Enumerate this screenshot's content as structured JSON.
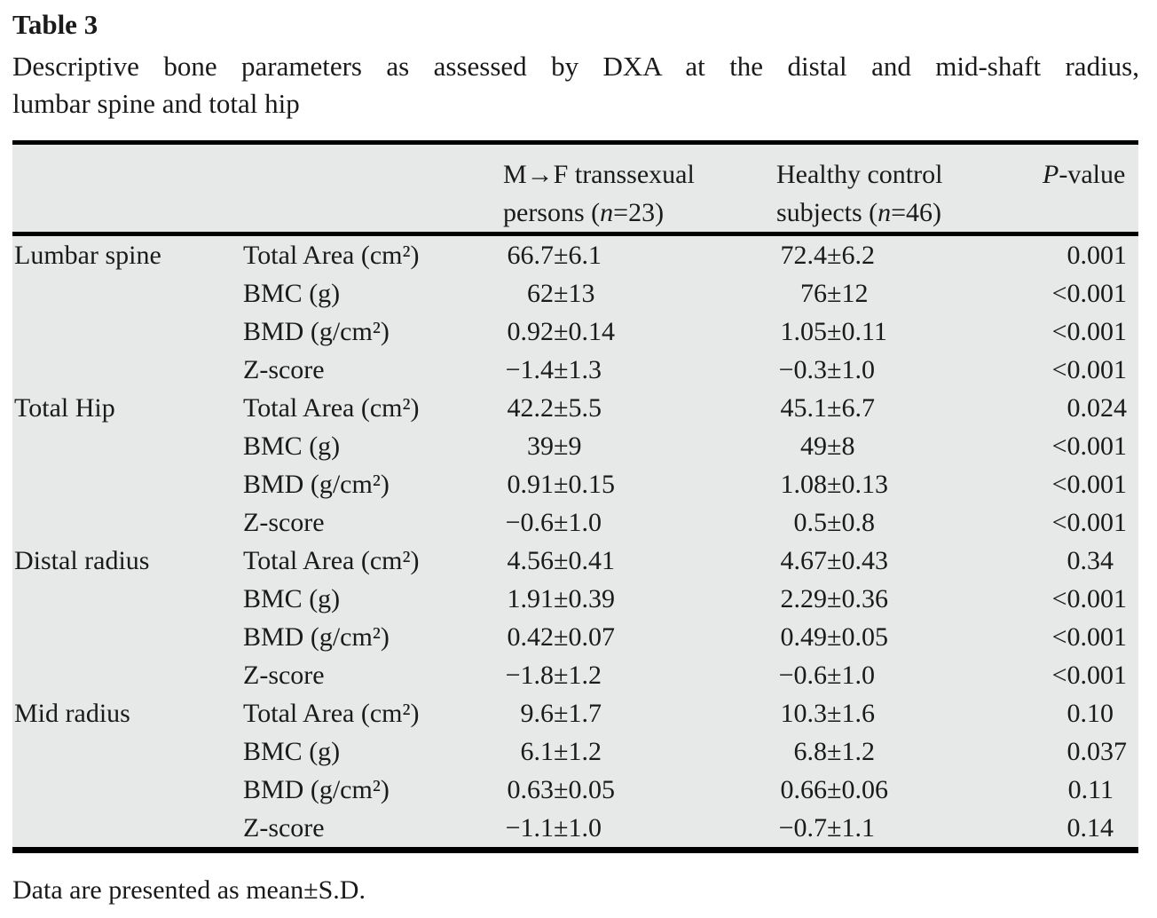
{
  "colors": {
    "table_background": "#e7e8e8",
    "rule_color": "#000000",
    "text_color": "#1a1a1a",
    "page_background": "#ffffff"
  },
  "table": {
    "label": "Table 3",
    "caption_lines": [
      "Descriptive bone parameters as assessed by DXA at the distal and mid-shaft radius,",
      "lumbar spine and total hip"
    ],
    "header": {
      "mf_line1": "M→F transsexual",
      "mf_line2": [
        {
          "t": "persons ("
        },
        {
          "t": "n",
          "i": true
        },
        {
          "t": "=23)"
        }
      ],
      "hc_line1": "Healthy control",
      "hc_line2": [
        {
          "t": "subjects ("
        },
        {
          "t": "n",
          "i": true
        },
        {
          "t": "=46)"
        }
      ],
      "p": [
        {
          "t": "P",
          "i": true
        },
        {
          "t": "-value"
        }
      ]
    },
    "sections": [
      {
        "region": "Lumbar spine",
        "rows": [
          {
            "param": "Total Area (cm²)",
            "mf": "66.7±6.1",
            "hc": "72.4±6.2",
            "p": "0.001"
          },
          {
            "param": "BMC (g)",
            "mf": "62±13",
            "hc": "76±12",
            "p": "<0.001"
          },
          {
            "param": "BMD (g/cm²)",
            "mf": "0.92±0.14",
            "hc": "1.05±0.11",
            "p": "<0.001"
          },
          {
            "param": "Z-score",
            "mf": "−1.4±1.3",
            "hc": "−0.3±1.0",
            "p": "<0.001"
          }
        ]
      },
      {
        "region": "Total Hip",
        "rows": [
          {
            "param": "Total Area (cm²)",
            "mf": "42.2±5.5",
            "hc": "45.1±6.7",
            "p": "0.024"
          },
          {
            "param": "BMC (g)",
            "mf": "39±9",
            "hc": "49±8",
            "p": "<0.001"
          },
          {
            "param": "BMD (g/cm²)",
            "mf": "0.91±0.15",
            "hc": "1.08±0.13",
            "p": "<0.001"
          },
          {
            "param": "Z-score",
            "mf": "−0.6±1.0",
            "hc": "0.5±0.8",
            "p": "<0.001"
          }
        ]
      },
      {
        "region": "Distal radius",
        "rows": [
          {
            "param": "Total Area (cm²)",
            "mf": "4.56±0.41",
            "hc": "4.67±0.43",
            "p": "0.34"
          },
          {
            "param": "BMC (g)",
            "mf": "1.91±0.39",
            "hc": "2.29±0.36",
            "p": "<0.001"
          },
          {
            "param": "BMD (g/cm²)",
            "mf": "0.42±0.07",
            "hc": "0.49±0.05",
            "p": "<0.001"
          },
          {
            "param": "Z-score",
            "mf": "−1.8±1.2",
            "hc": "−0.6±1.0",
            "p": "<0.001"
          }
        ]
      },
      {
        "region": "Mid radius",
        "rows": [
          {
            "param": "Total Area (cm²)",
            "mf": "9.6±1.7",
            "hc": "10.3±1.6",
            "p": "0.10"
          },
          {
            "param": "BMC (g)",
            "mf": "6.1±1.2",
            "hc": "6.8±1.2",
            "p": "0.037"
          },
          {
            "param": "BMD (g/cm²)",
            "mf": "0.63±0.05",
            "hc": "0.66±0.06",
            "p": "0.11"
          },
          {
            "param": "Z-score",
            "mf": "−1.1±1.0",
            "hc": "−0.7±1.1",
            "p": "0.14"
          }
        ]
      }
    ],
    "footnote": "Data are presented as mean±S.D."
  }
}
